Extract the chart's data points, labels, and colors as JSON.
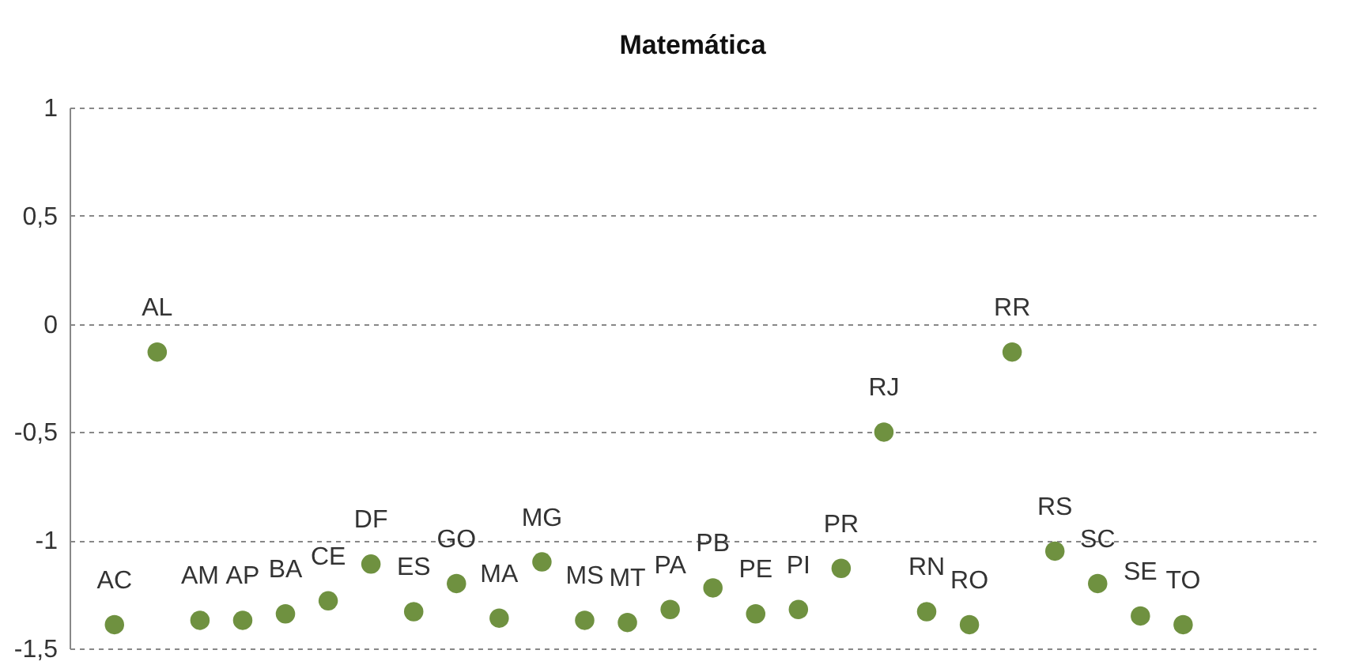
{
  "chart_data": {
    "type": "scatter",
    "title": "Matemática",
    "categories": [
      "AC",
      "AL",
      "AM",
      "AP",
      "BA",
      "CE",
      "DF",
      "ES",
      "GO",
      "MA",
      "MG",
      "MS",
      "MT",
      "PA",
      "PB",
      "PE",
      "PI",
      "PR",
      "RJ",
      "RN",
      "RO",
      "RR",
      "RS",
      "SC",
      "SE",
      "TO"
    ],
    "series": [
      {
        "color": "#6f9140",
        "values": [
          -1.39,
          -0.13,
          -1.37,
          -1.37,
          -1.34,
          -1.28,
          -1.11,
          -1.33,
          -1.2,
          -1.36,
          -1.1,
          -1.37,
          -1.38,
          -1.32,
          -1.22,
          -1.34,
          -1.32,
          -1.13,
          -0.5,
          -1.33,
          -1.39,
          -0.13,
          -1.05,
          -1.2,
          -1.35,
          -1.39
        ]
      }
    ],
    "ylim": [
      -1.5,
      1
    ],
    "yticks": [
      {
        "value": 1,
        "label": "1"
      },
      {
        "value": 0.5,
        "label": "0,5"
      },
      {
        "value": 0,
        "label": "0"
      },
      {
        "value": -0.5,
        "label": "-0,5"
      },
      {
        "value": -1,
        "label": "-1"
      },
      {
        "value": -1.5,
        "label": "-1,5"
      }
    ],
    "grid": "y",
    "legend": false,
    "tick_labels": "y",
    "marker": "circle"
  }
}
